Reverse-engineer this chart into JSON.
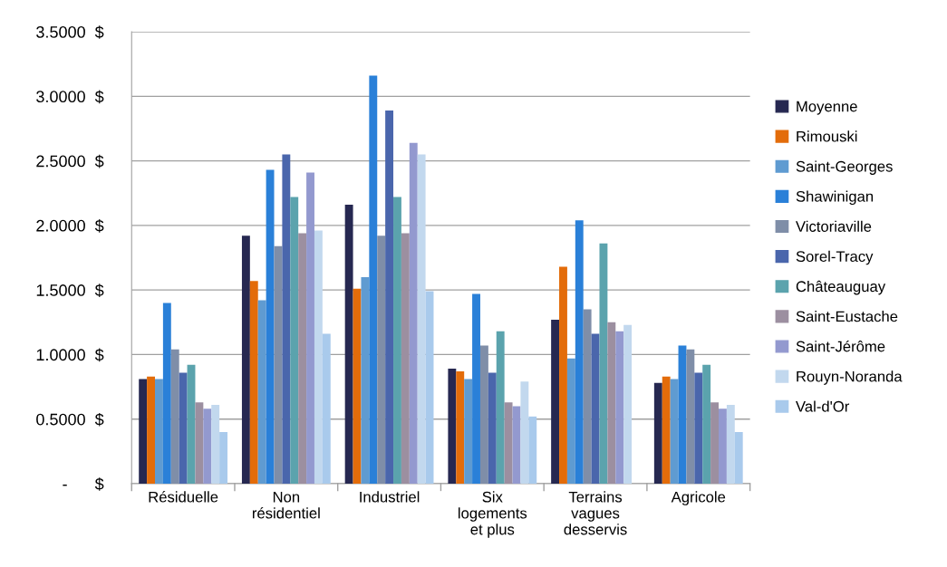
{
  "chart_data": {
    "type": "bar",
    "categories": [
      "Résiduelle",
      "Non\nrésidentiel",
      "Industriel",
      "Six\nlogements\net plus",
      "Terrains\nvagues\ndesservis",
      "Agricole"
    ],
    "series": [
      {
        "name": "Moyenne",
        "color": "#262851",
        "values": [
          0.81,
          1.92,
          2.16,
          0.89,
          1.27,
          0.78
        ]
      },
      {
        "name": "Rimouski",
        "color": "#e36c0a",
        "values": [
          0.83,
          1.57,
          1.51,
          0.87,
          1.68,
          0.83
        ]
      },
      {
        "name": "Saint-Georges",
        "color": "#5f9bd1",
        "values": [
          0.81,
          1.42,
          1.6,
          0.81,
          0.97,
          0.81
        ]
      },
      {
        "name": "Shawinigan",
        "color": "#2a80d8",
        "values": [
          1.4,
          2.43,
          3.16,
          1.47,
          2.04,
          1.07
        ]
      },
      {
        "name": "Victoriaville",
        "color": "#7f8ea8",
        "values": [
          1.04,
          1.84,
          1.92,
          1.07,
          1.35,
          1.04
        ]
      },
      {
        "name": "Sorel-Tracy",
        "color": "#4a66ac",
        "values": [
          0.86,
          2.55,
          2.89,
          0.86,
          1.16,
          0.86
        ]
      },
      {
        "name": "Châteauguay",
        "color": "#5ba3ad",
        "values": [
          0.92,
          2.22,
          2.22,
          1.18,
          1.86,
          0.92
        ]
      },
      {
        "name": "Saint-Eustache",
        "color": "#9c8fa0",
        "values": [
          0.63,
          1.94,
          1.94,
          0.63,
          1.25,
          0.63
        ]
      },
      {
        "name": "Saint-Jérôme",
        "color": "#9399cf",
        "values": [
          0.58,
          2.41,
          2.64,
          0.6,
          1.18,
          0.58
        ]
      },
      {
        "name": "Rouyn-Noranda",
        "color": "#c2d8ee",
        "values": [
          0.61,
          1.96,
          2.55,
          0.79,
          1.23,
          0.61
        ]
      },
      {
        "name": "Val-d'Or",
        "color": "#a9caec",
        "values": [
          0.4,
          1.16,
          1.49,
          0.52,
          null,
          0.4
        ]
      }
    ],
    "ylim": [
      0,
      3.5
    ],
    "yticks": [
      {
        "value": 0,
        "label": "-      $"
      },
      {
        "value": 0.5,
        "label": "0.5000  $"
      },
      {
        "value": 1.0,
        "label": "1.0000  $"
      },
      {
        "value": 1.5,
        "label": "1.5000  $"
      },
      {
        "value": 2.0,
        "label": "2.0000  $"
      },
      {
        "value": 2.5,
        "label": "2.5000  $"
      },
      {
        "value": 3.0,
        "label": "3.0000  $"
      },
      {
        "value": 3.5,
        "label": "3.5000  $"
      }
    ],
    "grid": "y",
    "legend": "right"
  }
}
